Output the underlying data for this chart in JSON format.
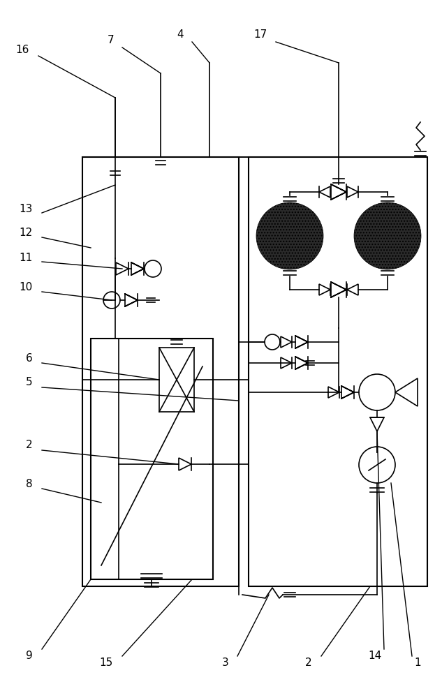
{
  "bg_color": "#ffffff",
  "line_color": "#000000",
  "figsize": [
    6.33,
    10.0
  ],
  "dpi": 100
}
